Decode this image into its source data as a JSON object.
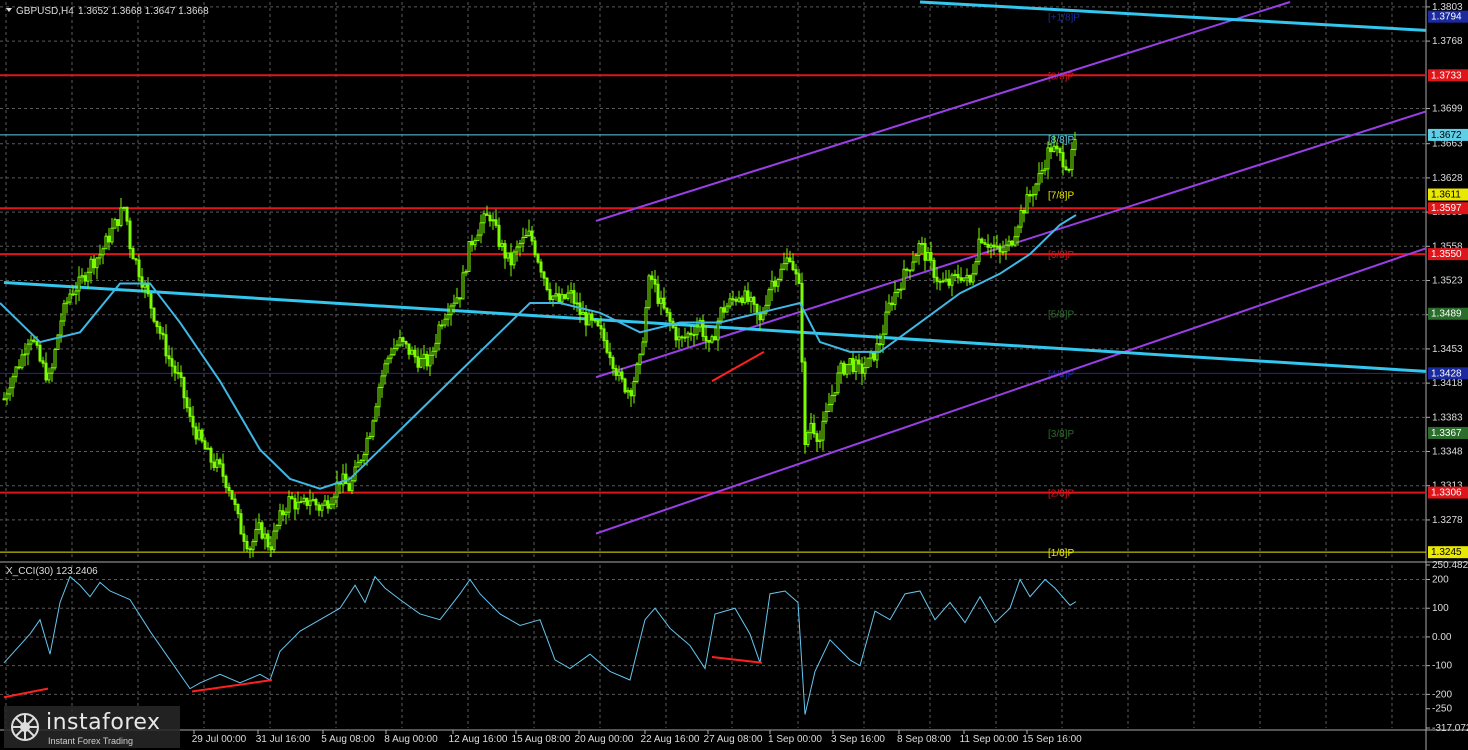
{
  "header": {
    "symbol_label": "GBPUSD,H4",
    "ohlc": "1.3652 1.3668 1.3647 1.3668",
    "indicator_label": "X_CCI(30) 123.2406"
  },
  "logo": {
    "name": "instaforex",
    "tagline": "Instant Forex Trading"
  },
  "colors": {
    "background": "#000000",
    "grid": "#5a5a5a",
    "candles": "#7CFC00",
    "moving_average": "#3fb8e6",
    "trend_line": "#33c6ee",
    "channel": "#9a3fe6",
    "murray_red": "#e0151a",
    "cci_line": "#66c6ee",
    "divergence": "#ff2020"
  },
  "chart_data": {
    "type": "candlestick",
    "symbol": "GBPUSD",
    "timeframe": "H4",
    "ohlc_last": {
      "open": 1.3652,
      "high": 1.3668,
      "low": 1.3647,
      "close": 1.3668
    },
    "x_tick_labels": [
      "29 Jul 00:00",
      "31 Jul 16:00",
      "5 Aug 08:00",
      "8 Aug 00:00",
      "12 Aug 16:00",
      "15 Aug 08:00",
      "20 Aug 00:00",
      "22 Aug 16:00",
      "27 Aug 08:00",
      "1 Sep 00:00",
      "3 Sep 16:00",
      "8 Sep 08:00",
      "11 Sep 00:00",
      "15 Sep 16:00"
    ],
    "y_tick_labels": [
      "1.3803",
      "1.3768",
      "1.3699",
      "1.3663",
      "1.3628",
      "1.3593",
      "1.3558",
      "1.3523",
      "1.3488",
      "1.3453",
      "1.3418",
      "1.3383",
      "1.3348",
      "1.3313",
      "1.3278"
    ],
    "ylim": [
      1.3237,
      1.3808
    ],
    "x_range": [
      0,
      1430
    ],
    "close_path": [
      [
        0,
        1.339
      ],
      [
        10,
        1.342
      ],
      [
        20,
        1.344
      ],
      [
        30,
        1.347
      ],
      [
        40,
        1.344
      ],
      [
        50,
        1.342
      ],
      [
        60,
        1.348
      ],
      [
        70,
        1.351
      ],
      [
        80,
        1.352
      ],
      [
        90,
        1.354
      ],
      [
        100,
        1.355
      ],
      [
        110,
        1.357
      ],
      [
        120,
        1.359
      ],
      [
        125,
        1.36
      ],
      [
        130,
        1.356
      ],
      [
        140,
        1.353
      ],
      [
        150,
        1.35
      ],
      [
        160,
        1.347
      ],
      [
        170,
        1.344
      ],
      [
        180,
        1.342
      ],
      [
        190,
        1.338
      ],
      [
        200,
        1.336
      ],
      [
        210,
        1.334
      ],
      [
        220,
        1.333
      ],
      [
        230,
        1.331
      ],
      [
        240,
        1.327
      ],
      [
        250,
        1.325
      ],
      [
        260,
        1.327
      ],
      [
        270,
        1.325
      ],
      [
        280,
        1.328
      ],
      [
        290,
        1.33
      ],
      [
        300,
        1.329
      ],
      [
        310,
        1.33
      ],
      [
        320,
        1.329
      ],
      [
        330,
        1.33
      ],
      [
        340,
        1.332
      ],
      [
        350,
        1.331
      ],
      [
        360,
        1.334
      ],
      [
        370,
        1.337
      ],
      [
        380,
        1.342
      ],
      [
        390,
        1.345
      ],
      [
        400,
        1.346
      ],
      [
        410,
        1.345
      ],
      [
        420,
        1.344
      ],
      [
        430,
        1.344
      ],
      [
        440,
        1.348
      ],
      [
        450,
        1.35
      ],
      [
        460,
        1.351
      ],
      [
        470,
        1.356
      ],
      [
        480,
        1.358
      ],
      [
        490,
        1.359
      ],
      [
        500,
        1.356
      ],
      [
        510,
        1.354
      ],
      [
        520,
        1.356
      ],
      [
        530,
        1.357
      ],
      [
        540,
        1.354
      ],
      [
        550,
        1.351
      ],
      [
        560,
        1.35
      ],
      [
        570,
        1.351
      ],
      [
        580,
        1.349
      ],
      [
        590,
        1.348
      ],
      [
        600,
        1.347
      ],
      [
        610,
        1.345
      ],
      [
        620,
        1.342
      ],
      [
        630,
        1.341
      ],
      [
        640,
        1.344
      ],
      [
        650,
        1.353
      ],
      [
        660,
        1.35
      ],
      [
        670,
        1.348
      ],
      [
        680,
        1.346
      ],
      [
        690,
        1.347
      ],
      [
        700,
        1.348
      ],
      [
        710,
        1.345
      ],
      [
        720,
        1.349
      ],
      [
        730,
        1.35
      ],
      [
        740,
        1.351
      ],
      [
        750,
        1.35
      ],
      [
        760,
        1.348
      ],
      [
        770,
        1.352
      ],
      [
        780,
        1.353
      ],
      [
        790,
        1.355
      ],
      [
        800,
        1.351
      ],
      [
        805,
        1.335
      ],
      [
        810,
        1.338
      ],
      [
        820,
        1.336
      ],
      [
        830,
        1.34
      ],
      [
        840,
        1.343
      ],
      [
        850,
        1.344
      ],
      [
        860,
        1.343
      ],
      [
        870,
        1.344
      ],
      [
        880,
        1.346
      ],
      [
        890,
        1.35
      ],
      [
        900,
        1.352
      ],
      [
        910,
        1.354
      ],
      [
        920,
        1.356
      ],
      [
        930,
        1.354
      ],
      [
        940,
        1.352
      ],
      [
        950,
        1.352
      ],
      [
        960,
        1.353
      ],
      [
        970,
        1.352
      ],
      [
        980,
        1.357
      ],
      [
        990,
        1.356
      ],
      [
        1000,
        1.355
      ],
      [
        1010,
        1.356
      ],
      [
        1020,
        1.359
      ],
      [
        1030,
        1.361
      ],
      [
        1040,
        1.363
      ],
      [
        1050,
        1.366
      ],
      [
        1060,
        1.365
      ],
      [
        1070,
        1.364
      ],
      [
        1076,
        1.3668
      ]
    ],
    "moving_average_path": [
      [
        0,
        1.35
      ],
      [
        40,
        1.346
      ],
      [
        80,
        1.347
      ],
      [
        120,
        1.352
      ],
      [
        150,
        1.352
      ],
      [
        180,
        1.348
      ],
      [
        220,
        1.342
      ],
      [
        260,
        1.335
      ],
      [
        290,
        1.332
      ],
      [
        320,
        1.331
      ],
      [
        350,
        1.332
      ],
      [
        380,
        1.335
      ],
      [
        420,
        1.339
      ],
      [
        460,
        1.343
      ],
      [
        500,
        1.347
      ],
      [
        530,
        1.35
      ],
      [
        560,
        1.35
      ],
      [
        600,
        1.349
      ],
      [
        640,
        1.347
      ],
      [
        680,
        1.348
      ],
      [
        720,
        1.348
      ],
      [
        760,
        1.349
      ],
      [
        800,
        1.35
      ],
      [
        820,
        1.346
      ],
      [
        850,
        1.345
      ],
      [
        880,
        1.345
      ],
      [
        920,
        1.348
      ],
      [
        960,
        1.351
      ],
      [
        1000,
        1.353
      ],
      [
        1030,
        1.355
      ],
      [
        1060,
        1.358
      ],
      [
        1076,
        1.359
      ]
    ],
    "murray_levels": [
      {
        "label": "[+1/8]P",
        "value": 1.3793,
        "axis_label": "1.3794",
        "color": "#1b2a9e",
        "line": false
      },
      {
        "label": "[8/8]P",
        "value": 1.3733,
        "axis_label": "1.3733",
        "color": "#e0151a",
        "line": true
      },
      {
        "label": "[8/8]P",
        "value": 1.3672,
        "axis_label": "1.3672",
        "color": "#5ecfe6",
        "line": true
      },
      {
        "label": "[7/8]P",
        "value": 1.3611,
        "axis_label": "1.3611",
        "color": "#e8e800",
        "line": false
      },
      {
        "label": "",
        "value": 1.3597,
        "axis_label": "1.3597",
        "color": "#e0151a",
        "line": true
      },
      {
        "label": "[6/8]P",
        "value": 1.355,
        "axis_label": "1.3550",
        "color": "#e0151a",
        "line": true
      },
      {
        "label": "[5/8]P",
        "value": 1.3489,
        "axis_label": "1.3489",
        "color": "#2b6e2b",
        "line": false
      },
      {
        "label": "[4/8]P",
        "value": 1.3428,
        "axis_label": "1.3428",
        "color": "#1b2a9e",
        "line": true
      },
      {
        "label": "[3/8]P",
        "value": 1.3367,
        "axis_label": "1.3367",
        "color": "#2b6e2b",
        "line": false
      },
      {
        "label": "[2/8]P",
        "value": 1.3306,
        "axis_label": "1.3306",
        "color": "#e0151a",
        "line": true
      },
      {
        "label": "[1/8]P",
        "value": 1.3245,
        "axis_label": "1.3245",
        "color": "#e8e800",
        "line": true
      }
    ],
    "trend_lines": [
      {
        "name": "upper",
        "from": [
          920,
          1.3808
        ],
        "to": [
          1426,
          1.3779
        ]
      },
      {
        "name": "lower",
        "from": [
          4,
          1.3521
        ],
        "to": [
          1426,
          1.343
        ]
      }
    ],
    "channel_lines": [
      {
        "from": [
          596,
          1.3584
        ],
        "to": [
          1290,
          1.3808
        ]
      },
      {
        "from": [
          596,
          1.3424
        ],
        "to": [
          1426,
          1.3696
        ]
      },
      {
        "from": [
          596,
          1.3264
        ],
        "to": [
          1426,
          1.3556
        ]
      }
    ],
    "price_divergence": {
      "from": [
        712,
        1.342
      ],
      "to": [
        764,
        1.345
      ]
    },
    "cci": {
      "name": "X_CCI(30)",
      "current": 123.2406,
      "ylim": [
        -317.0721,
        250.4821
      ],
      "y_tick_labels": [
        "250.4821",
        "200",
        "100",
        "0.00",
        "-100",
        "-200",
        "-250",
        "-317.0721"
      ],
      "path": [
        [
          4,
          -90
        ],
        [
          30,
          10
        ],
        [
          40,
          60
        ],
        [
          50,
          -60
        ],
        [
          60,
          120
        ],
        [
          70,
          210
        ],
        [
          80,
          180
        ],
        [
          90,
          140
        ],
        [
          100,
          190
        ],
        [
          110,
          160
        ],
        [
          130,
          130
        ],
        [
          150,
          20
        ],
        [
          170,
          -80
        ],
        [
          190,
          -180
        ],
        [
          200,
          -160
        ],
        [
          220,
          -130
        ],
        [
          240,
          -160
        ],
        [
          260,
          -130
        ],
        [
          270,
          -150
        ],
        [
          280,
          -50
        ],
        [
          300,
          20
        ],
        [
          320,
          60
        ],
        [
          340,
          100
        ],
        [
          355,
          180
        ],
        [
          365,
          120
        ],
        [
          375,
          210
        ],
        [
          385,
          170
        ],
        [
          400,
          130
        ],
        [
          420,
          80
        ],
        [
          440,
          60
        ],
        [
          460,
          150
        ],
        [
          470,
          200
        ],
        [
          480,
          150
        ],
        [
          500,
          80
        ],
        [
          520,
          40
        ],
        [
          540,
          60
        ],
        [
          555,
          -80
        ],
        [
          570,
          -110
        ],
        [
          590,
          -60
        ],
        [
          610,
          -120
        ],
        [
          630,
          -150
        ],
        [
          645,
          60
        ],
        [
          655,
          100
        ],
        [
          670,
          30
        ],
        [
          690,
          -30
        ],
        [
          705,
          -110
        ],
        [
          715,
          80
        ],
        [
          735,
          100
        ],
        [
          750,
          10
        ],
        [
          760,
          -90
        ],
        [
          770,
          150
        ],
        [
          785,
          160
        ],
        [
          798,
          120
        ],
        [
          805,
          -270
        ],
        [
          815,
          -120
        ],
        [
          830,
          -10
        ],
        [
          850,
          -80
        ],
        [
          860,
          -100
        ],
        [
          875,
          90
        ],
        [
          890,
          60
        ],
        [
          905,
          150
        ],
        [
          920,
          160
        ],
        [
          935,
          60
        ],
        [
          950,
          120
        ],
        [
          965,
          50
        ],
        [
          980,
          140
        ],
        [
          995,
          50
        ],
        [
          1010,
          100
        ],
        [
          1020,
          200
        ],
        [
          1030,
          140
        ],
        [
          1045,
          200
        ],
        [
          1055,
          170
        ],
        [
          1070,
          110
        ],
        [
          1076,
          123
        ]
      ],
      "divergences": [
        {
          "from": [
            4,
            -210
          ],
          "to": [
            48,
            -180
          ]
        },
        {
          "from": [
            192,
            -190
          ],
          "to": [
            272,
            -150
          ]
        },
        {
          "from": [
            712,
            -70
          ],
          "to": [
            762,
            -90
          ]
        }
      ]
    }
  }
}
